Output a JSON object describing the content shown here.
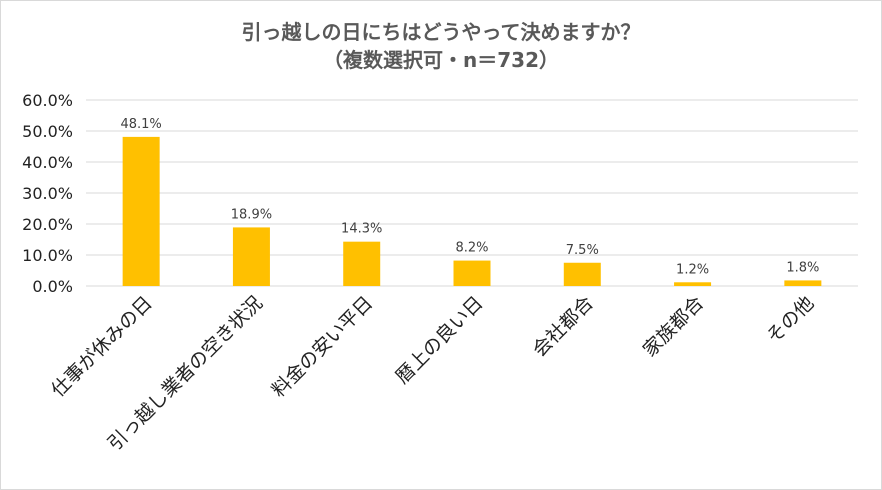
{
  "chart_data": {
    "type": "bar",
    "title": "引っ越しの日にちはどうやって決めますか？",
    "subtitle": "（複数選択可・n＝732）",
    "categories": [
      "仕事が休みの日",
      "引っ越し業者の空き状況",
      "料金の安い平日",
      "暦上の良い日",
      "会社都合",
      "家族都合",
      "その他"
    ],
    "values": [
      48.1,
      18.9,
      14.3,
      8.2,
      7.5,
      1.2,
      1.8
    ],
    "data_labels": [
      "48.1%",
      "18.9%",
      "14.3%",
      "8.2%",
      "7.5%",
      "1.2%",
      "1.8%"
    ],
    "y_ticks": [
      0,
      10,
      20,
      30,
      40,
      50,
      60
    ],
    "y_tick_labels": [
      "0.0%",
      "10.0%",
      "20.0%",
      "30.0%",
      "40.0%",
      "50.0%",
      "60.0%"
    ],
    "ylim": [
      0,
      60
    ],
    "xlabel": "",
    "ylabel": "",
    "grid": true,
    "legend": "none",
    "bar_color": "#FFC000",
    "grid_color": "#d9d9d9"
  }
}
